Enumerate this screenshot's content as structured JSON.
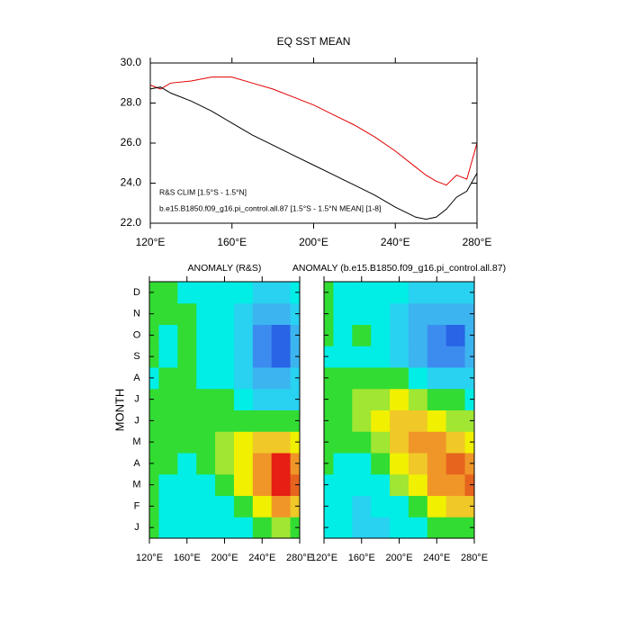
{
  "chart_data": [
    {
      "type": "line",
      "title": "EQ SST MEAN",
      "x": [
        120,
        125,
        130,
        140,
        150,
        160,
        170,
        180,
        190,
        200,
        210,
        220,
        230,
        240,
        250,
        255,
        260,
        265,
        270,
        275,
        280
      ],
      "series": [
        {
          "name": "R&S CLIM [1.5°S - 1.5°N]",
          "color": "#e00000",
          "values": [
            28.9,
            28.7,
            29.0,
            29.1,
            29.3,
            29.3,
            29.0,
            28.7,
            28.3,
            27.9,
            27.4,
            26.9,
            26.3,
            25.6,
            24.8,
            24.4,
            24.1,
            23.9,
            24.4,
            24.2,
            26.0
          ]
        },
        {
          "name": "b.e15.B1850.f09_g16.pi_control.all.87 [1.5°S - 1.5°N MEAN] [1-8]",
          "color": "#000000",
          "values": [
            28.7,
            28.8,
            28.5,
            28.1,
            27.6,
            27.0,
            26.4,
            25.9,
            25.4,
            24.9,
            24.4,
            23.9,
            23.4,
            22.8,
            22.3,
            22.2,
            22.3,
            22.7,
            23.3,
            23.6,
            24.5
          ]
        }
      ],
      "xlim": [
        120,
        280
      ],
      "xticks": [
        {
          "value": 120,
          "label": "120°E"
        },
        {
          "value": 160,
          "label": "160°E"
        },
        {
          "value": 200,
          "label": "200°E"
        },
        {
          "value": 240,
          "label": "240°E"
        },
        {
          "value": 280,
          "label": "280°E"
        }
      ],
      "ylim": [
        22,
        30
      ],
      "yticks": [
        {
          "value": 22,
          "label": "22.0"
        },
        {
          "value": 24,
          "label": "24.0"
        },
        {
          "value": 26,
          "label": "26.0"
        },
        {
          "value": 28,
          "label": "28.0"
        },
        {
          "value": 30,
          "label": "30.0"
        }
      ],
      "legend": "lower left"
    },
    {
      "type": "contour",
      "title": "ANOMALY (R&S)",
      "y_label": "MONTH",
      "x": [
        120,
        140,
        160,
        180,
        200,
        220,
        240,
        260,
        280
      ],
      "y_categories": [
        "J",
        "F",
        "M",
        "A",
        "M",
        "J",
        "J",
        "A",
        "S",
        "O",
        "N",
        "D"
      ],
      "z": [
        [
          0.1,
          -0.2,
          -0.3,
          -0.2,
          -0.2,
          -0.1,
          0.2,
          0.6,
          0.3
        ],
        [
          0.2,
          -0.2,
          -0.3,
          -0.2,
          -0.1,
          0.3,
          1.0,
          1.6,
          1.2
        ],
        [
          0.3,
          -0.1,
          -0.2,
          -0.1,
          0.2,
          0.8,
          1.8,
          2.6,
          2.0
        ],
        [
          0.3,
          0.0,
          -0.1,
          0.1,
          0.4,
          1.0,
          1.8,
          2.4,
          1.8
        ],
        [
          0.2,
          0.1,
          0.0,
          0.2,
          0.5,
          0.9,
          1.2,
          1.3,
          1.0
        ],
        [
          0.1,
          0.1,
          0.1,
          0.2,
          0.3,
          0.3,
          0.2,
          0.1,
          0.0
        ],
        [
          0.0,
          0.0,
          0.1,
          0.1,
          0.0,
          -0.2,
          -0.5,
          -0.6,
          -0.5
        ],
        [
          -0.1,
          0.0,
          0.0,
          -0.1,
          -0.3,
          -0.5,
          -1.0,
          -1.2,
          -0.8
        ],
        [
          0.0,
          -0.2,
          0.2,
          -0.2,
          -0.4,
          -0.8,
          -1.6,
          -2.0,
          -1.2
        ],
        [
          0.1,
          -0.1,
          0.1,
          -0.1,
          -0.4,
          -0.7,
          -1.4,
          -1.7,
          -1.0
        ],
        [
          0.1,
          0.0,
          0.0,
          -0.1,
          -0.2,
          -0.5,
          -1.0,
          -1.2,
          -0.6
        ],
        [
          0.1,
          0.0,
          -0.1,
          -0.1,
          -0.2,
          -0.4,
          -0.7,
          -0.8,
          -0.4
        ]
      ],
      "levels": [
        -2,
        -1.6,
        -1.2,
        -0.8,
        -0.4,
        0,
        0.4,
        0.8,
        1.2,
        1.6,
        2.0,
        2.4
      ],
      "colors": [
        "#1e3cd2",
        "#2864e6",
        "#3c8cf0",
        "#3cb4f0",
        "#28d2f0",
        "#00eee6",
        "#32dc32",
        "#a0e632",
        "#f0f000",
        "#f0c828",
        "#f09628",
        "#e6641e",
        "#e61e14"
      ],
      "xlim": [
        120,
        280
      ],
      "xticks": [
        {
          "value": 120,
          "label": "120°E"
        },
        {
          "value": 160,
          "label": "160°E"
        },
        {
          "value": 200,
          "label": "200°E"
        },
        {
          "value": 240,
          "label": "240°E"
        },
        {
          "value": 280,
          "label": "280°E"
        }
      ]
    },
    {
      "type": "contour",
      "title": "ANOMALY (b.e15.B1850.f09_g16.pi_control.all.87)",
      "x": [
        120,
        140,
        160,
        180,
        200,
        220,
        240,
        260,
        280
      ],
      "z": [
        [
          -0.3,
          -0.4,
          -0.5,
          -0.5,
          -0.4,
          -0.2,
          0.1,
          0.3,
          0.2
        ],
        [
          -0.2,
          -0.4,
          -0.5,
          -0.4,
          -0.2,
          0.3,
          0.9,
          1.2,
          1.3
        ],
        [
          -0.1,
          -0.2,
          -0.3,
          -0.1,
          0.4,
          1.0,
          1.6,
          1.9,
          2.0
        ],
        [
          0.0,
          -0.1,
          -0.1,
          0.3,
          0.8,
          1.4,
          1.9,
          2.0,
          1.7
        ],
        [
          0.1,
          0.1,
          0.3,
          0.7,
          1.2,
          1.6,
          1.6,
          1.4,
          1.1
        ],
        [
          0.1,
          0.2,
          0.5,
          1.0,
          1.3,
          1.2,
          0.9,
          0.7,
          0.4
        ],
        [
          0.1,
          0.2,
          0.4,
          0.7,
          0.8,
          0.5,
          0.2,
          0.0,
          -0.2
        ],
        [
          0.0,
          0.0,
          0.1,
          0.2,
          0.0,
          -0.3,
          -0.6,
          -0.7,
          -0.6
        ],
        [
          -0.1,
          -0.2,
          -0.2,
          -0.2,
          -0.5,
          -0.9,
          -1.3,
          -1.4,
          -1.2
        ],
        [
          0.0,
          -0.1,
          0.1,
          -0.3,
          -0.6,
          -1.1,
          -1.6,
          -1.7,
          -1.2
        ],
        [
          0.0,
          -0.1,
          -0.1,
          -0.3,
          -0.5,
          -0.9,
          -1.2,
          -1.2,
          -0.9
        ],
        [
          0.0,
          -0.2,
          -0.3,
          -0.3,
          -0.4,
          -0.6,
          -0.8,
          -0.8,
          -0.6
        ]
      ],
      "levels": [
        -2,
        -1.6,
        -1.2,
        -0.8,
        -0.4,
        0,
        0.4,
        0.8,
        1.2,
        1.6,
        2.0,
        2.4
      ],
      "colors": [
        "#1e3cd2",
        "#2864e6",
        "#3c8cf0",
        "#3cb4f0",
        "#28d2f0",
        "#00eee6",
        "#32dc32",
        "#a0e632",
        "#f0f000",
        "#f0c828",
        "#f09628",
        "#e6641e",
        "#e61e14"
      ],
      "xlim": [
        120,
        280
      ],
      "xticks": [
        {
          "value": 120,
          "label": "120°E"
        },
        {
          "value": 160,
          "label": "160°E"
        },
        {
          "value": 200,
          "label": "200°E"
        },
        {
          "value": 240,
          "label": "240°E"
        },
        {
          "value": 280,
          "label": "280°E"
        }
      ]
    }
  ]
}
